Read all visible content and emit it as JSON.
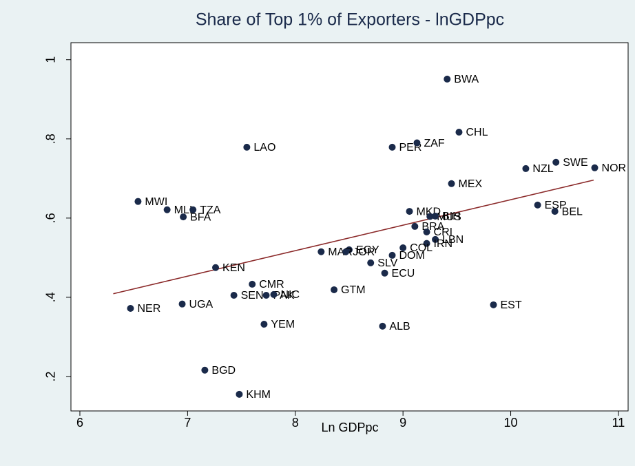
{
  "chart_data": {
    "type": "scatter",
    "title": "Share of Top 1% of Exporters - lnGDPpc",
    "xlabel": "Ln GDPpc",
    "color": "#1a2a4a",
    "labels": [
      "BWA",
      "CHL",
      "LAO",
      "PER",
      "ZAF",
      "NZL",
      "SWE",
      "NOR",
      "MEX",
      "MWI",
      "MLI",
      "TZA",
      "BFA",
      "ESP",
      "BEL",
      "MKD",
      "MUS",
      "BIH",
      "BRA",
      "CRI",
      "LBN",
      "IRN",
      "COL",
      "DOM",
      "EGY",
      "MAR",
      "JOR",
      "SLV",
      "ECU",
      "KEN",
      "CMR",
      "GTM",
      "SEN",
      "PAK",
      "NIC",
      "NER",
      "UGA",
      "EST",
      "YEM",
      "ALB",
      "BGD",
      "KHM"
    ],
    "x": [
      9.41,
      9.52,
      7.55,
      8.9,
      9.13,
      10.14,
      10.42,
      10.78,
      9.45,
      6.54,
      6.81,
      7.05,
      6.96,
      10.25,
      10.41,
      9.06,
      9.25,
      9.3,
      9.11,
      9.22,
      9.3,
      9.22,
      9.0,
      8.9,
      8.5,
      8.24,
      8.47,
      8.7,
      8.83,
      7.26,
      7.6,
      8.36,
      7.43,
      7.73,
      7.8,
      6.47,
      6.95,
      9.84,
      7.71,
      8.81,
      7.16,
      7.48
    ],
    "y": [
      0.951,
      0.817,
      0.779,
      0.779,
      0.79,
      0.725,
      0.741,
      0.727,
      0.687,
      0.642,
      0.621,
      0.621,
      0.603,
      0.633,
      0.617,
      0.617,
      0.604,
      0.605,
      0.579,
      0.565,
      0.546,
      0.536,
      0.525,
      0.506,
      0.52,
      0.515,
      0.515,
      0.487,
      0.461,
      0.475,
      0.433,
      0.419,
      0.405,
      0.405,
      0.407,
      0.372,
      0.383,
      0.381,
      0.332,
      0.327,
      0.216,
      0.155
    ],
    "fit_line": {
      "color": "#8b2a2a",
      "x": [
        6.31,
        10.77
      ],
      "y": [
        0.409,
        0.696
      ]
    },
    "xlim": [
      5.917,
      11.09
    ],
    "ylim": [
      0.113,
      1.043
    ],
    "xticks": [
      6,
      7,
      8,
      9,
      10,
      11
    ],
    "yticks": [
      {
        "value": 0.2,
        "label": ".2"
      },
      {
        "value": 0.4,
        "label": ".4"
      },
      {
        "value": 0.6,
        "label": ".6"
      },
      {
        "value": 0.8,
        "label": ".8"
      },
      1
    ],
    "grid": false
  }
}
